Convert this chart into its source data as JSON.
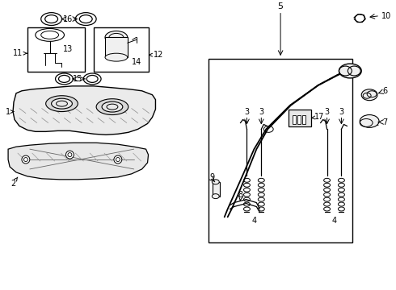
{
  "bg": "#ffffff",
  "lc": "#000000",
  "fig_w": 4.9,
  "fig_h": 3.6,
  "dpi": 100
}
